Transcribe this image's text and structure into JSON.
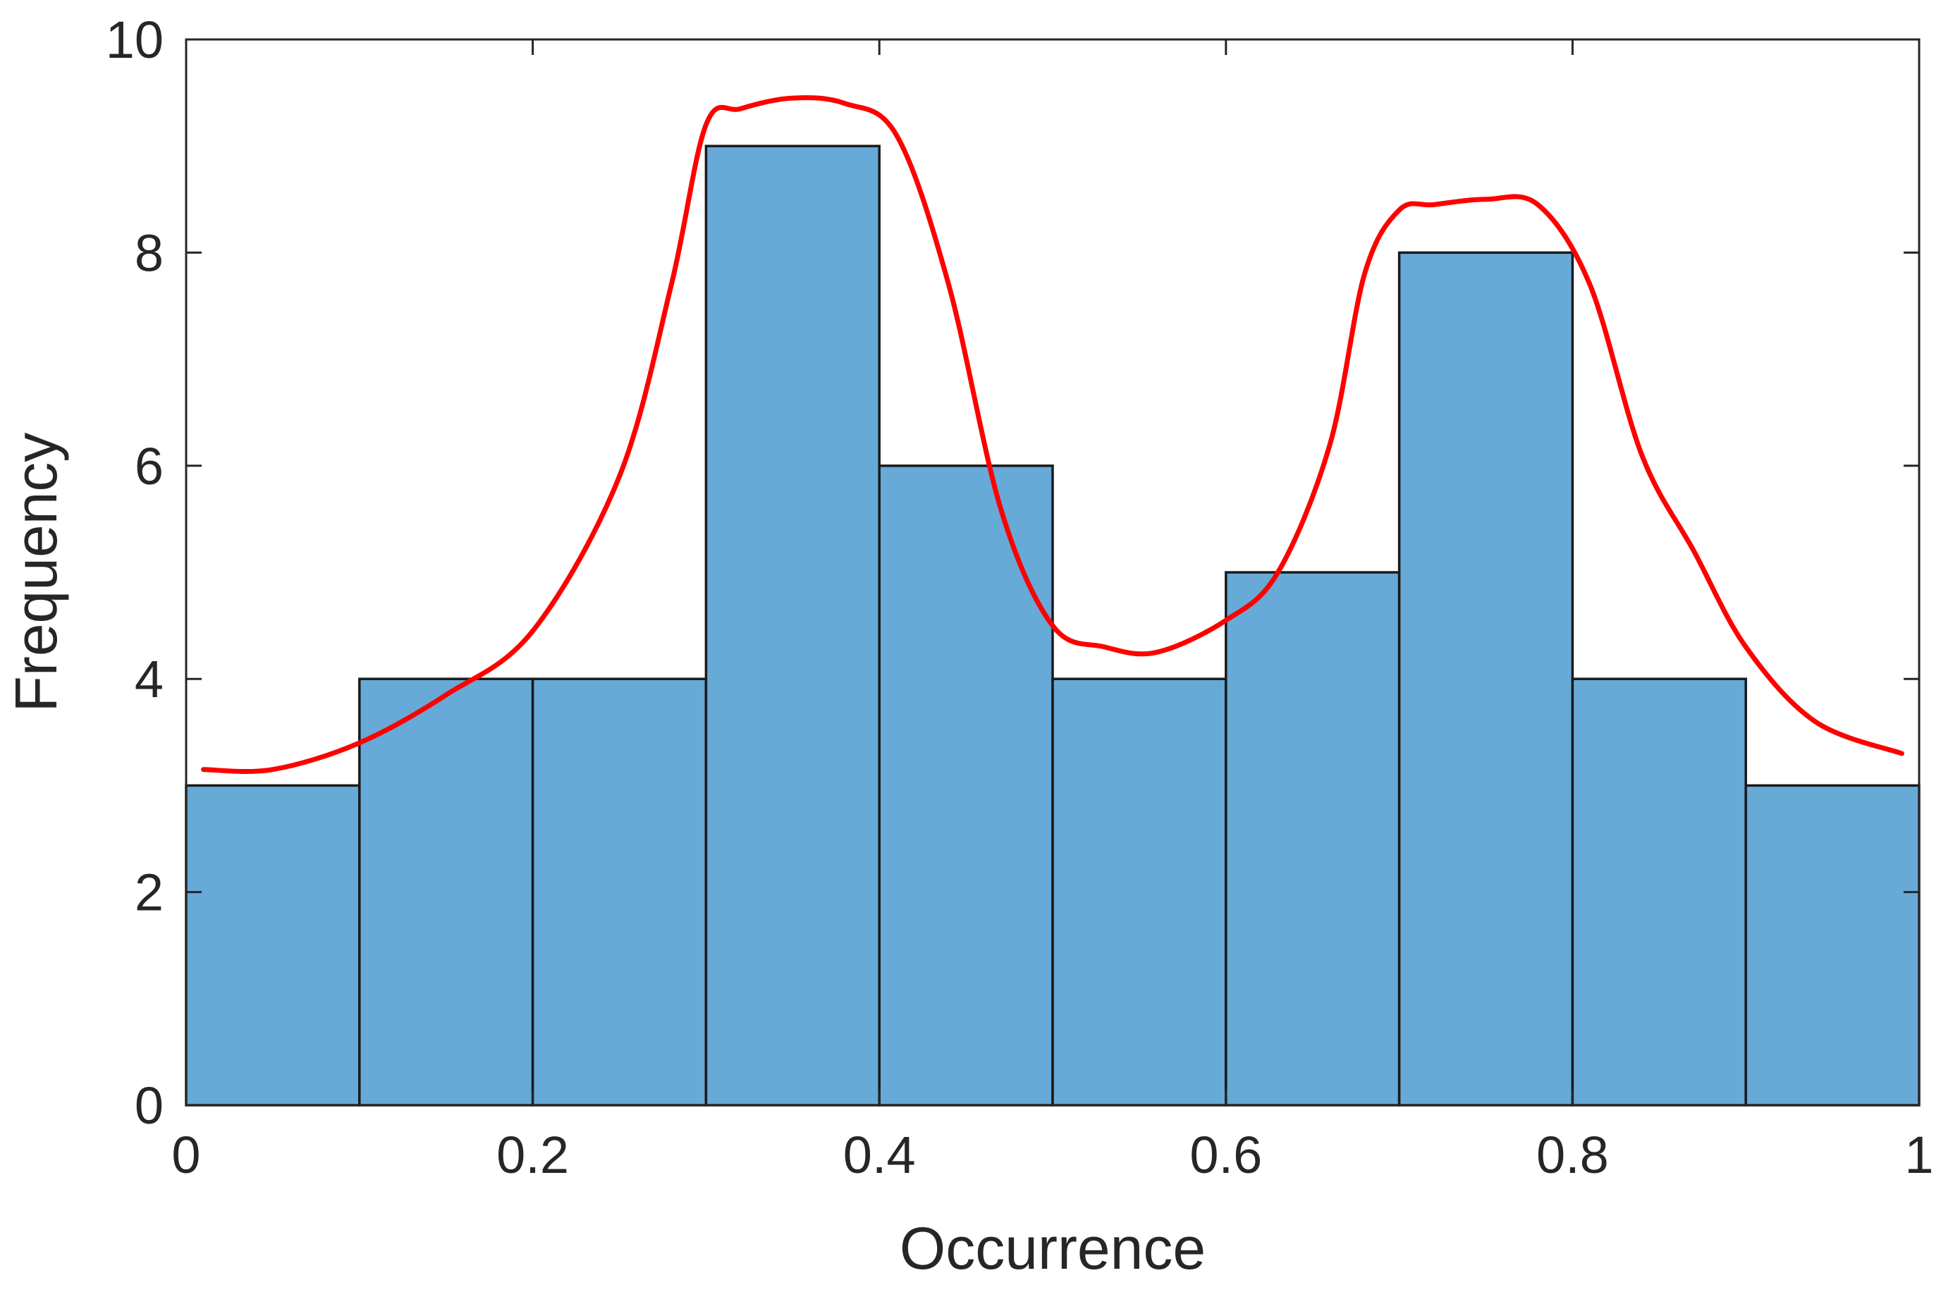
{
  "chart_data": {
    "type": "bar",
    "subtype": "histogram",
    "xlabel": "Occurrence",
    "ylabel": "Frequency",
    "xlim": [
      0,
      1
    ],
    "ylim": [
      0,
      10
    ],
    "x_ticks": [
      0,
      0.2,
      0.4,
      0.6,
      0.8,
      1
    ],
    "x_tick_labels": [
      "0",
      "0.2",
      "0.4",
      "0.6",
      "0.8",
      "1"
    ],
    "y_ticks": [
      0,
      2,
      4,
      6,
      8,
      10
    ],
    "y_tick_labels": [
      "0",
      "2",
      "4",
      "6",
      "8",
      "10"
    ],
    "bin_edges": [
      0,
      0.1,
      0.2,
      0.3,
      0.4,
      0.5,
      0.6,
      0.7,
      0.8,
      0.9,
      1.0
    ],
    "values": [
      3,
      4,
      4,
      9,
      6,
      4,
      5,
      8,
      4,
      3
    ],
    "bar_color": "#67a9d7",
    "bar_edge_color": "#1a1a1a",
    "curve": {
      "color": "#ff0000",
      "x": [
        0.01,
        0.05,
        0.1,
        0.15,
        0.2,
        0.25,
        0.28,
        0.3,
        0.32,
        0.35,
        0.38,
        0.41,
        0.44,
        0.47,
        0.5,
        0.53,
        0.56,
        0.6,
        0.63,
        0.66,
        0.68,
        0.7,
        0.72,
        0.75,
        0.78,
        0.81,
        0.84,
        0.87,
        0.9,
        0.94,
        0.99
      ],
      "y": [
        3.15,
        3.15,
        3.4,
        3.85,
        4.45,
        5.9,
        7.7,
        9.2,
        9.35,
        9.45,
        9.4,
        9.1,
        7.7,
        5.6,
        4.5,
        4.3,
        4.25,
        4.55,
        5.0,
        6.2,
        7.8,
        8.4,
        8.45,
        8.5,
        8.45,
        7.7,
        6.1,
        5.2,
        4.3,
        3.6,
        3.3
      ]
    },
    "grid": false,
    "box": true
  }
}
